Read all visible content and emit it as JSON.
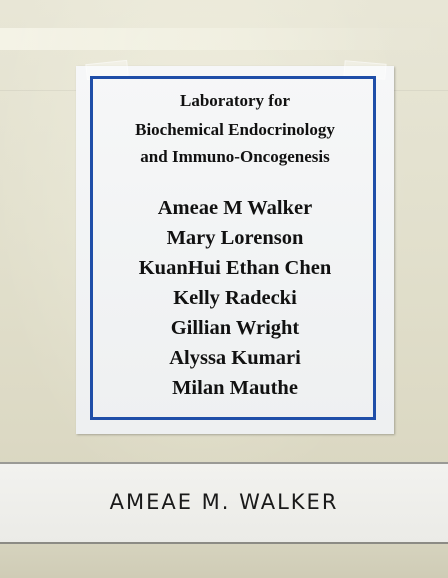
{
  "sign": {
    "heading": [
      "Laboratory for",
      "Biochemical Endocrinology",
      "and Immuno-Oncogenesis"
    ],
    "names": [
      "Ameae M Walker",
      "Mary Lorenson",
      "KuanHui Ethan Chen",
      "Kelly Radecki",
      "Gillian Wright",
      "Alyssa Kumari",
      "Milan Mauthe"
    ],
    "border_color": "#1f4ea8"
  },
  "nameplate": {
    "text": "AMEAE M. WALKER"
  }
}
